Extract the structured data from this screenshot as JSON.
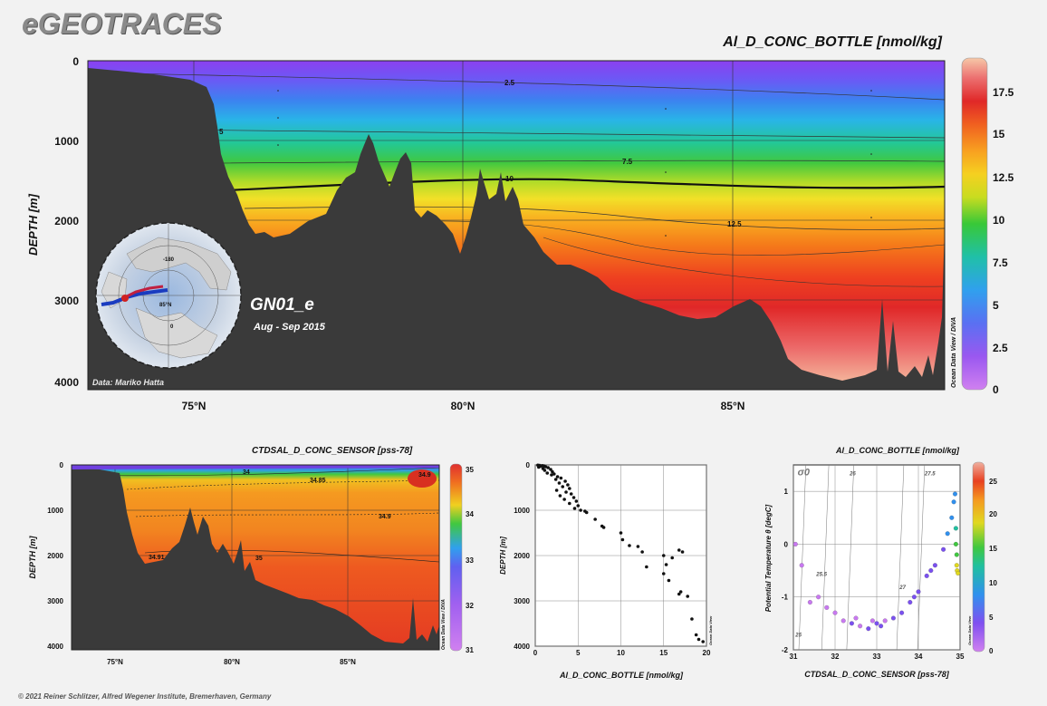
{
  "logo": "eGEOTRACES",
  "footer": "© 2021 Reiner Schlitzer, Alfred Wegener Institute, Bremerhaven, Germany",
  "colors": {
    "terrain": "#3a3a3a",
    "background": "#f2f2f2"
  },
  "main_section": {
    "title": "Al_D_CONC_BOTTLE [nmol/kg]",
    "ylabel": "DEPTH [m]",
    "y_ticks": [
      "0",
      "1000",
      "2000",
      "3000",
      "4000"
    ],
    "x_ticks": [
      "75°N",
      "80°N",
      "85°N"
    ],
    "colorbar_ticks": [
      "17.5",
      "15",
      "12.5",
      "10",
      "7.5",
      "5",
      "2.5",
      "0"
    ],
    "contour_labels": [
      "2.5",
      "5",
      "7.5",
      "10",
      "12.5"
    ],
    "cruise": "GN01_e",
    "dates": "Aug - Sep 2015",
    "credit": "Data: Mariko Hatta",
    "odv_tag": "Ocean Data View / DIVA",
    "map_labels": [
      "-180",
      "0",
      "85°N"
    ]
  },
  "salinity_section": {
    "title": "CTDSAL_D_CONC_SENSOR [pss-78]",
    "ylabel": "DEPTH [m]",
    "y_ticks": [
      "0",
      "1000",
      "2000",
      "3000",
      "4000"
    ],
    "x_ticks": [
      "75°N",
      "80°N",
      "85°N"
    ],
    "colorbar_ticks": [
      "35",
      "34",
      "33",
      "32",
      "31"
    ],
    "contour_labels": [
      "34",
      "34.85",
      "34.9",
      "34.9",
      "34.91",
      "35"
    ],
    "odv_tag": "Ocean Data View / DIVA"
  },
  "chart_data": [
    {
      "type": "scatter",
      "title": "",
      "xlabel": "Al_D_CONC_BOTTLE [nmol/kg]",
      "ylabel": "DEPTH [m]",
      "xlim": [
        0,
        20
      ],
      "ylim": [
        4000,
        0
      ],
      "x_ticks": [
        "0",
        "5",
        "10",
        "15",
        "20"
      ],
      "y_ticks": [
        "0",
        "1000",
        "2000",
        "3000",
        "4000"
      ],
      "odv_tag": "Ocean Data View",
      "points": [
        {
          "x": 0.3,
          "y": 5
        },
        {
          "x": 0.5,
          "y": 10
        },
        {
          "x": 0.8,
          "y": 15
        },
        {
          "x": 1.0,
          "y": 20
        },
        {
          "x": 0.6,
          "y": 30
        },
        {
          "x": 1.2,
          "y": 40
        },
        {
          "x": 0.4,
          "y": 50
        },
        {
          "x": 1.5,
          "y": 60
        },
        {
          "x": 0.9,
          "y": 80
        },
        {
          "x": 1.8,
          "y": 100
        },
        {
          "x": 1.1,
          "y": 120
        },
        {
          "x": 2.0,
          "y": 150
        },
        {
          "x": 1.4,
          "y": 180
        },
        {
          "x": 2.2,
          "y": 200
        },
        {
          "x": 1.9,
          "y": 220
        },
        {
          "x": 2.6,
          "y": 260
        },
        {
          "x": 3.0,
          "y": 290
        },
        {
          "x": 2.4,
          "y": 320
        },
        {
          "x": 3.5,
          "y": 360
        },
        {
          "x": 2.8,
          "y": 400
        },
        {
          "x": 3.8,
          "y": 440
        },
        {
          "x": 3.2,
          "y": 480
        },
        {
          "x": 4.0,
          "y": 520
        },
        {
          "x": 2.5,
          "y": 560
        },
        {
          "x": 3.6,
          "y": 600
        },
        {
          "x": 4.2,
          "y": 640
        },
        {
          "x": 2.9,
          "y": 680
        },
        {
          "x": 4.5,
          "y": 720
        },
        {
          "x": 3.4,
          "y": 760
        },
        {
          "x": 4.8,
          "y": 800
        },
        {
          "x": 4.0,
          "y": 850
        },
        {
          "x": 5.0,
          "y": 900
        },
        {
          "x": 4.6,
          "y": 960
        },
        {
          "x": 5.3,
          "y": 1000
        },
        {
          "x": 5.8,
          "y": 1020
        },
        {
          "x": 6.0,
          "y": 1050
        },
        {
          "x": 7.0,
          "y": 1200
        },
        {
          "x": 7.8,
          "y": 1350
        },
        {
          "x": 8.0,
          "y": 1380
        },
        {
          "x": 10.0,
          "y": 1500
        },
        {
          "x": 10.2,
          "y": 1650
        },
        {
          "x": 11.0,
          "y": 1780
        },
        {
          "x": 12.0,
          "y": 1800
        },
        {
          "x": 12.5,
          "y": 1920
        },
        {
          "x": 15.0,
          "y": 2000
        },
        {
          "x": 16.0,
          "y": 2050
        },
        {
          "x": 16.8,
          "y": 1880
        },
        {
          "x": 17.2,
          "y": 1920
        },
        {
          "x": 13.0,
          "y": 2250
        },
        {
          "x": 15.3,
          "y": 2200
        },
        {
          "x": 15.0,
          "y": 2400
        },
        {
          "x": 15.6,
          "y": 2550
        },
        {
          "x": 17.0,
          "y": 2800
        },
        {
          "x": 16.8,
          "y": 2850
        },
        {
          "x": 17.8,
          "y": 2900
        },
        {
          "x": 18.3,
          "y": 3400
        },
        {
          "x": 18.8,
          "y": 3750
        },
        {
          "x": 19.1,
          "y": 3850
        },
        {
          "x": 19.6,
          "y": 3900
        }
      ]
    },
    {
      "type": "scatter",
      "title": "Al_D_CONC_BOTTLE [nmol/kg]",
      "xlabel": "CTDSAL_D_CONC_SENSOR [pss-78]",
      "ylabel": "Potential Temperature θ [degC]",
      "xlim": [
        31,
        35
      ],
      "ylim": [
        -2,
        1.5
      ],
      "x_ticks": [
        "31",
        "32",
        "33",
        "34",
        "35"
      ],
      "y_ticks": [
        "1",
        "0",
        "-1",
        "-2"
      ],
      "colorbar_ticks": [
        "25",
        "20",
        "15",
        "10",
        "5",
        "0"
      ],
      "isopycnal_labels": [
        "σ0",
        "25",
        "25.5",
        "26",
        "27",
        "27.5"
      ],
      "odv_tag": "Ocean Data View",
      "points": [
        {
          "x": 31.05,
          "y": 0.0,
          "c": 2
        },
        {
          "x": 31.2,
          "y": -0.4,
          "c": 3
        },
        {
          "x": 31.4,
          "y": -1.1,
          "c": 3
        },
        {
          "x": 31.6,
          "y": -1.0,
          "c": 4
        },
        {
          "x": 31.8,
          "y": -1.2,
          "c": 4
        },
        {
          "x": 32.0,
          "y": -1.3,
          "c": 3
        },
        {
          "x": 32.2,
          "y": -1.45,
          "c": 4
        },
        {
          "x": 32.4,
          "y": -1.5,
          "c": 5
        },
        {
          "x": 32.6,
          "y": -1.55,
          "c": 4
        },
        {
          "x": 32.8,
          "y": -1.6,
          "c": 5
        },
        {
          "x": 33.0,
          "y": -1.5,
          "c": 5
        },
        {
          "x": 33.2,
          "y": -1.45,
          "c": 4
        },
        {
          "x": 33.4,
          "y": -1.4,
          "c": 5
        },
        {
          "x": 33.6,
          "y": -1.3,
          "c": 5
        },
        {
          "x": 33.8,
          "y": -1.1,
          "c": 6
        },
        {
          "x": 34.0,
          "y": -0.9,
          "c": 6
        },
        {
          "x": 34.2,
          "y": -0.6,
          "c": 6
        },
        {
          "x": 34.4,
          "y": -0.4,
          "c": 6
        },
        {
          "x": 34.6,
          "y": -0.1,
          "c": 7
        },
        {
          "x": 34.7,
          "y": 0.2,
          "c": 8
        },
        {
          "x": 34.8,
          "y": 0.5,
          "c": 8
        },
        {
          "x": 34.85,
          "y": 0.8,
          "c": 9
        },
        {
          "x": 34.88,
          "y": 0.95,
          "c": 9
        },
        {
          "x": 34.9,
          "y": 0.3,
          "c": 14
        },
        {
          "x": 34.9,
          "y": 0.0,
          "c": 16
        },
        {
          "x": 34.92,
          "y": -0.2,
          "c": 17
        },
        {
          "x": 34.92,
          "y": -0.4,
          "c": 18
        },
        {
          "x": 34.93,
          "y": -0.5,
          "c": 18
        },
        {
          "x": 34.95,
          "y": -0.55,
          "c": 19
        },
        {
          "x": 32.9,
          "y": -1.45,
          "c": 4
        },
        {
          "x": 33.1,
          "y": -1.55,
          "c": 5
        },
        {
          "x": 32.5,
          "y": -1.4,
          "c": 4
        },
        {
          "x": 33.9,
          "y": -1.0,
          "c": 5
        },
        {
          "x": 34.3,
          "y": -0.5,
          "c": 6
        }
      ]
    }
  ]
}
